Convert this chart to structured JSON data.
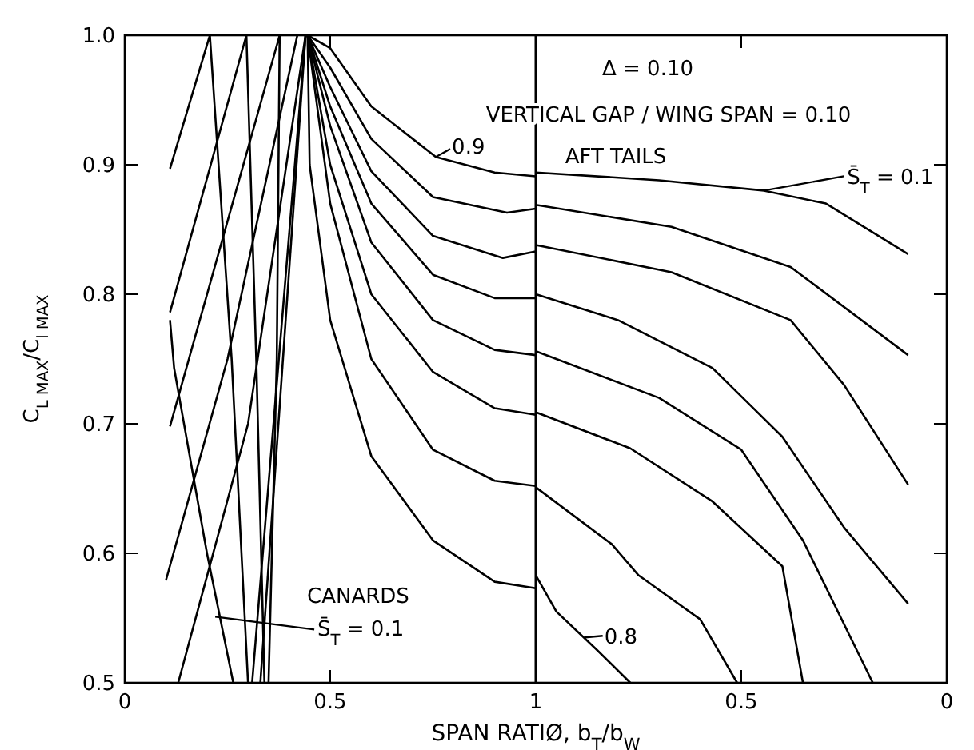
{
  "chart_data": [
    {
      "type": "line",
      "xlabel": "SPAN RATIØ, b$_{T}$/b$_{W}$",
      "ylabel": "C$_{L MAX}$/C$_{l MAX}$",
      "xlim": [
        0,
        1
      ],
      "xticks": [
        0,
        0.5,
        {
          "value": 1,
          "label": null
        }
      ],
      "ylim": [
        0.5,
        1
      ],
      "yticks": [
        0.5,
        0.6,
        0.7,
        0.8,
        0.9,
        {
          "value": 1,
          "label": "1.0"
        }
      ],
      "grid": false,
      "marker": "none",
      "line_style": "solid",
      "annotations": [
        {
          "text": "0.9",
          "x": 0.757,
          "y": 0.906
        },
        "CANARDS",
        {
          "text": "S̄$_{T}$ = 0.1",
          "x": 0.22,
          "y": 0.551
        }
      ],
      "series": [
        {
          "color": "#000000",
          "x": [
            0.445,
            0.5,
            0.6,
            0.757,
            0.9,
            1.0
          ],
          "values": [
            1.0,
            0.99,
            0.945,
            0.906,
            0.894,
            0.891
          ]
        },
        {
          "color": "#000000",
          "x": [
            0.445,
            0.5,
            0.6,
            0.75,
            0.93,
            1.0
          ],
          "values": [
            1.0,
            0.975,
            0.92,
            0.875,
            0.863,
            0.866
          ]
        },
        {
          "color": "#000000",
          "x": [
            0.445,
            0.5,
            0.6,
            0.75,
            0.92,
            1.0
          ],
          "values": [
            1.0,
            0.96,
            0.895,
            0.845,
            0.828,
            0.833
          ]
        },
        {
          "color": "#000000",
          "x": [
            0.445,
            0.5,
            0.6,
            0.75,
            0.9,
            1.0
          ],
          "values": [
            1.0,
            0.945,
            0.87,
            0.815,
            0.797,
            0.797
          ]
        },
        {
          "color": "#000000",
          "x": [
            0.445,
            0.5,
            0.6,
            0.75,
            0.9,
            1.0
          ],
          "values": [
            1.0,
            0.93,
            0.84,
            0.78,
            0.757,
            0.753
          ]
        },
        {
          "color": "#000000",
          "x": [
            0.445,
            0.5,
            0.6,
            0.75,
            0.9,
            1.0
          ],
          "values": [
            1.0,
            0.9,
            0.8,
            0.74,
            0.712,
            0.707
          ]
        },
        {
          "color": "#000000",
          "x": [
            0.445,
            0.5,
            0.6,
            0.75,
            0.9,
            1.0
          ],
          "values": [
            1.0,
            0.87,
            0.75,
            0.68,
            0.656,
            0.652
          ]
        },
        {
          "color": "#000000",
          "x": [
            0.445,
            0.45,
            0.5,
            0.6,
            0.75,
            0.9,
            1.0
          ],
          "values": [
            1.0,
            0.9,
            0.78,
            0.675,
            0.61,
            0.578,
            0.573
          ]
        },
        {
          "color": "#000000",
          "x": [
            0.11,
            0.207,
            0.26,
            0.3
          ],
          "values": [
            0.897,
            1.0,
            0.75,
            0.5
          ]
        },
        {
          "color": "#000000",
          "x": [
            0.11,
            0.296,
            0.32,
            0.34
          ],
          "values": [
            0.786,
            1.0,
            0.75,
            0.5
          ]
        },
        {
          "color": "#000000",
          "x": [
            0.11,
            0.377,
            0.37,
            0.35
          ],
          "values": [
            0.698,
            1.0,
            0.75,
            0.5
          ]
        },
        {
          "color": "#000000",
          "x": [
            0.1,
            0.25,
            0.42
          ],
          "values": [
            0.579,
            0.75,
            1.0
          ]
        },
        {
          "color": "#000000",
          "x": [
            0.13,
            0.3,
            0.44
          ],
          "values": [
            0.5,
            0.7,
            1.0
          ]
        },
        {
          "color": "#000000",
          "x": [
            0.11,
            0.12,
            0.2,
            0.264
          ],
          "values": [
            0.78,
            0.743,
            0.6,
            0.5
          ]
        },
        {
          "color": "#000000",
          "x": [
            0.31,
            0.44
          ],
          "values": [
            0.5,
            1.0
          ]
        },
        {
          "color": "#000000",
          "x": [
            0.33,
            0.44
          ],
          "values": [
            0.5,
            1.0
          ]
        }
      ]
    },
    {
      "type": "line",
      "xlim": [
        1,
        0
      ],
      "xticks": [
        1,
        0.5,
        0
      ],
      "ylim": [
        0.5,
        1
      ],
      "yticks": [
        0.5,
        0.6,
        0.7,
        0.8,
        0.9,
        1
      ],
      "tick_labels": "x",
      "grid": false,
      "marker": "none",
      "line_style": "solid",
      "annotations": [
        "Δ = 0.10",
        "VERTICAL GAP / WING SPAN = 0.10",
        "AFT TAILS",
        {
          "text": "S̄$_{T}$ = 0.1",
          "x": 0.445,
          "y": 0.88
        },
        {
          "text": "0.8",
          "x": 0.88,
          "y": 0.535
        }
      ],
      "series": [
        {
          "color": "#000000",
          "x": [
            1,
            0.7,
            0.445,
            0.294,
            0.094
          ],
          "values": [
            0.894,
            0.888,
            0.88,
            0.87,
            0.831
          ]
        },
        {
          "color": "#000000",
          "x": [
            1,
            0.67,
            0.38,
            0.094
          ],
          "values": [
            0.869,
            0.852,
            0.821,
            0.753
          ]
        },
        {
          "color": "#000000",
          "x": [
            1,
            0.67,
            0.38,
            0.25,
            0.094
          ],
          "values": [
            0.838,
            0.817,
            0.78,
            0.73,
            0.653
          ]
        },
        {
          "color": "#000000",
          "x": [
            1,
            0.8,
            0.57,
            0.4,
            0.25,
            0.094
          ],
          "values": [
            0.8,
            0.78,
            0.743,
            0.69,
            0.62,
            0.561
          ]
        },
        {
          "color": "#000000",
          "x": [
            1,
            0.7,
            0.5,
            0.35,
            0.18
          ],
          "values": [
            0.756,
            0.72,
            0.68,
            0.61,
            0.5
          ]
        },
        {
          "color": "#000000",
          "x": [
            1,
            0.77,
            0.57,
            0.4,
            0.35
          ],
          "values": [
            0.709,
            0.681,
            0.64,
            0.59,
            0.5
          ]
        },
        {
          "color": "#000000",
          "x": [
            1,
            0.815,
            0.75,
            0.6,
            0.51
          ],
          "values": [
            0.651,
            0.607,
            0.583,
            0.549,
            0.5
          ]
        },
        {
          "color": "#000000",
          "x": [
            1,
            0.95,
            0.85,
            0.77
          ],
          "values": [
            0.583,
            0.555,
            0.525,
            0.5
          ]
        }
      ]
    }
  ]
}
